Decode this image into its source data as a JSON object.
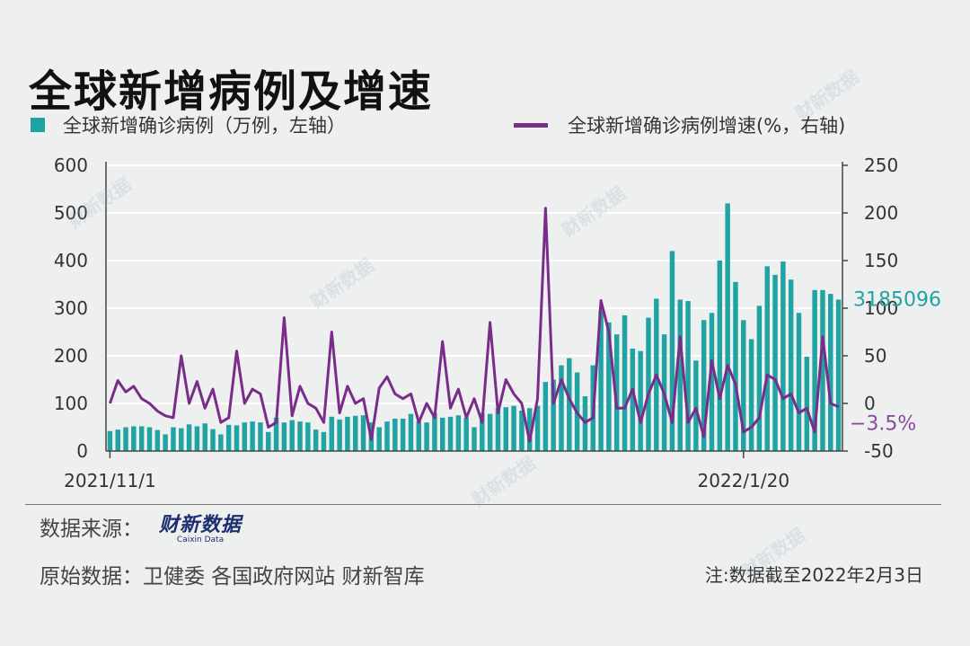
{
  "title": "全球新增病例及增速",
  "legend": {
    "bar_label": "全球新增确诊病例（万例，左轴）",
    "line_label": "全球新增确诊病例增速(%，右轴)"
  },
  "colors": {
    "bar": "#21a3a3",
    "line": "#7a2c8a",
    "axis": "#444444",
    "grid": "#ffffff"
  },
  "source": {
    "label": "数据来源：",
    "logo_text": "财新数据",
    "logo_sub": "Caixin Data"
  },
  "original": "原始数据：卫健委  各国政府网站  财新智库",
  "note": "注:数据截至2022年2月3日",
  "watermark": "财新数据",
  "chart_data": {
    "type": "bar+line",
    "x_tick_labels": [
      "2021/11/1",
      "2022/1/20"
    ],
    "x_tick_index": [
      0,
      80
    ],
    "left_axis": {
      "ylim": [
        0,
        600
      ],
      "ticks": [
        0,
        100,
        200,
        300,
        400,
        500,
        600
      ]
    },
    "right_axis": {
      "ylim": [
        -50,
        250
      ],
      "ticks": [
        -50,
        0,
        50,
        100,
        150,
        200,
        250
      ]
    },
    "grid": true,
    "series": [
      {
        "name": "全球新增确诊病例（万例，左轴）",
        "axis": "left",
        "type": "bar",
        "values": [
          42,
          45,
          50,
          52,
          52,
          50,
          44,
          35,
          50,
          48,
          56,
          52,
          58,
          46,
          35,
          55,
          54,
          60,
          62,
          60,
          40,
          70,
          60,
          65,
          62,
          60,
          45,
          40,
          72,
          66,
          72,
          74,
          75,
          60,
          50,
          62,
          68,
          68,
          78,
          62,
          60,
          80,
          70,
          72,
          75,
          70,
          50,
          80,
          78,
          90,
          92,
          95,
          85,
          90,
          95,
          145,
          150,
          180,
          195,
          165,
          115,
          180,
          295,
          270,
          245,
          285,
          215,
          210,
          280,
          320,
          245,
          420,
          318,
          315,
          190,
          275,
          290,
          400,
          520,
          355,
          275,
          235,
          305,
          388,
          370,
          398,
          360,
          290,
          198,
          338,
          338,
          330,
          318
        ]
      },
      {
        "name": "全球新增确诊病例增速(%，右轴)",
        "axis": "right",
        "type": "line",
        "values": [
          0,
          24,
          12,
          18,
          5,
          0,
          -8,
          -13,
          -15,
          50,
          0,
          23,
          -5,
          15,
          -20,
          -15,
          55,
          0,
          15,
          10,
          -25,
          -20,
          90,
          -13,
          18,
          0,
          -5,
          -20,
          75,
          -10,
          18,
          0,
          5,
          -38,
          16,
          28,
          10,
          5,
          10,
          -20,
          0,
          -15,
          65,
          -5,
          15,
          -15,
          5,
          -20,
          85,
          -10,
          25,
          10,
          0,
          -40,
          5,
          205,
          0,
          25,
          5,
          -10,
          -20,
          -15,
          108,
          75,
          -5,
          -5,
          15,
          -20,
          10,
          30,
          10,
          -20,
          70,
          -20,
          -5,
          -35,
          45,
          5,
          40,
          20,
          -30,
          -25,
          -15,
          30,
          25,
          5,
          10,
          -10,
          -5,
          -30,
          70,
          0,
          -3.5
        ]
      }
    ],
    "annotations": [
      {
        "text": "3185096",
        "series": 0
      },
      {
        "text": "−3.5%",
        "series": 1
      }
    ]
  }
}
